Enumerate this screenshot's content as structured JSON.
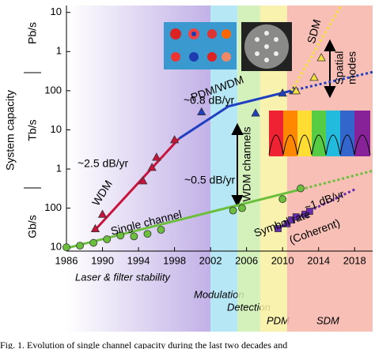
{
  "chart_data": {
    "type": "line",
    "y_label": "System capacity",
    "y_units": [
      "Gb/s",
      "Tb/s",
      "Pb/s"
    ],
    "log_y": true,
    "xlim": [
      1986,
      2020
    ],
    "xticks": [
      1986,
      1990,
      1994,
      1998,
      2002,
      2006,
      2010,
      2014,
      2018
    ],
    "ylim": [
      8,
      15000000
    ],
    "yticks": [
      10,
      100,
      {
        "value": 1000,
        "label": "1"
      },
      {
        "value": 10000,
        "label": "10"
      },
      {
        "value": 100000,
        "label": "100"
      },
      {
        "value": 1000000,
        "label": "1"
      },
      {
        "value": 10000000,
        "label": "10"
      }
    ],
    "eras": [
      {
        "label": "Laser & filter stability",
        "start": 1986,
        "end": 2002,
        "color": "#b7a3e3"
      },
      {
        "label": "Modulation",
        "start": 2002,
        "end": 2005,
        "color": "#a9e3f3"
      },
      {
        "label": "Detection",
        "start": 2005,
        "end": 2007.5,
        "color": "#cdeeb0"
      },
      {
        "label": "PDM",
        "start": 2007.5,
        "end": 2010.5,
        "color": "#f7f0a0"
      },
      {
        "label": "SDM",
        "start": 2010.5,
        "end": 2020,
        "color": "#f6b4a8"
      }
    ],
    "series": [
      {
        "name": "WDM",
        "color": "#c8143c",
        "marker": "triangle",
        "x": [
          1989.2,
          1990,
          1994.5,
          1995.5,
          1996,
          1998
        ],
        "values": [
          30,
          70,
          500,
          1100,
          2000,
          5600
        ],
        "trend": {
          "x": [
            1989,
            1998.5
          ],
          "values": [
            25,
            6000
          ]
        }
      },
      {
        "name": "PDM/WDM",
        "color": "#1f3fc0",
        "marker": "triangle",
        "x": [
          2001,
          2007,
          2010,
          2011.2
        ],
        "values": [
          29000,
          27000,
          87000,
          100000
        ],
        "trend": {
          "x": [
            1998.5,
            2004,
            2011
          ],
          "values": [
            6000,
            40000,
            100000
          ]
        },
        "projection": {
          "x": [
            2011,
            2020
          ],
          "values": [
            100000,
            300000
          ]
        }
      },
      {
        "name": "SDM",
        "color": "#f5e040",
        "marker": "triangle",
        "x": [
          2011.5,
          2013.5,
          2014.3
        ],
        "values": [
          100000,
          220000,
          700000
        ],
        "projection": {
          "x": [
            2011,
            2016.5
          ],
          "values": [
            100000,
            15000000
          ]
        }
      },
      {
        "name": "Single channel",
        "color": "#6cbf3c",
        "marker": "circle",
        "x": [
          1986,
          1987.5,
          1989,
          1990.5,
          1992,
          1993.5,
          1995,
          1996.5,
          2004.5,
          2005.5,
          2010,
          2012
        ],
        "values": [
          10,
          11,
          13,
          16,
          20,
          19,
          22,
          28,
          87,
          100,
          170,
          320
        ],
        "trend": {
          "x": [
            1986,
            2012
          ],
          "values": [
            9.5,
            300
          ]
        },
        "projection": {
          "x": [
            2012,
            2020
          ],
          "values": [
            300,
            900
          ]
        }
      },
      {
        "name": "Symbol rate",
        "color": "#6a2bb0",
        "marker": "square",
        "x": [
          2009.5,
          2010.5,
          2011,
          2011.5,
          2012.5,
          2013
        ],
        "values": [
          30,
          40,
          50,
          60,
          70,
          83
        ],
        "trend": {
          "x": [
            2009.5,
            2013
          ],
          "values": [
            30,
            85
          ]
        },
        "projection": {
          "x": [
            2013,
            2018
          ],
          "values": [
            85,
            300
          ]
        }
      }
    ],
    "annotations": [
      "~2.5 dB/yr",
      "~0.8 dB/yr",
      "~0.5 dB/yr",
      "~1 dB/yr",
      "(Coherent)",
      "WDM channels",
      "Spatial",
      "modes"
    ],
    "caption": "Fig. 1.  Evolution of single channel capacity during the last two decades and"
  }
}
